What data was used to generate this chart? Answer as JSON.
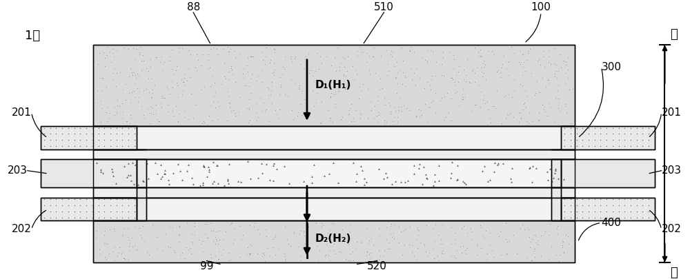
{
  "fig_width": 10.0,
  "fig_height": 4.05,
  "dpi": 100,
  "bg_color": "#ffffff",
  "label_1": "1：",
  "label_88": "88",
  "label_99": "99",
  "label_100": "100",
  "label_510": "510",
  "label_520": "520",
  "label_300": "300",
  "label_400": "400",
  "label_201_L": "201",
  "label_201_R": "201",
  "label_202_L": "202",
  "label_202_R": "202",
  "label_203_L": "203",
  "label_203_R": "203",
  "label_D1H1": "D₁(H₁)",
  "label_D2H2": "D₂(H₂)",
  "label_up": "上",
  "label_down": "下",
  "plate_color": "#d8d8d8",
  "gdl_color": "#f0f0f0",
  "mem_color": "#f8f8f8",
  "gasket_dot_color": "#e8e8e8",
  "gasket_hatch_color": "#e0e0e0",
  "speckle_color": "#aaaaaa",
  "hatch_color": "#666666",
  "black": "#000000"
}
